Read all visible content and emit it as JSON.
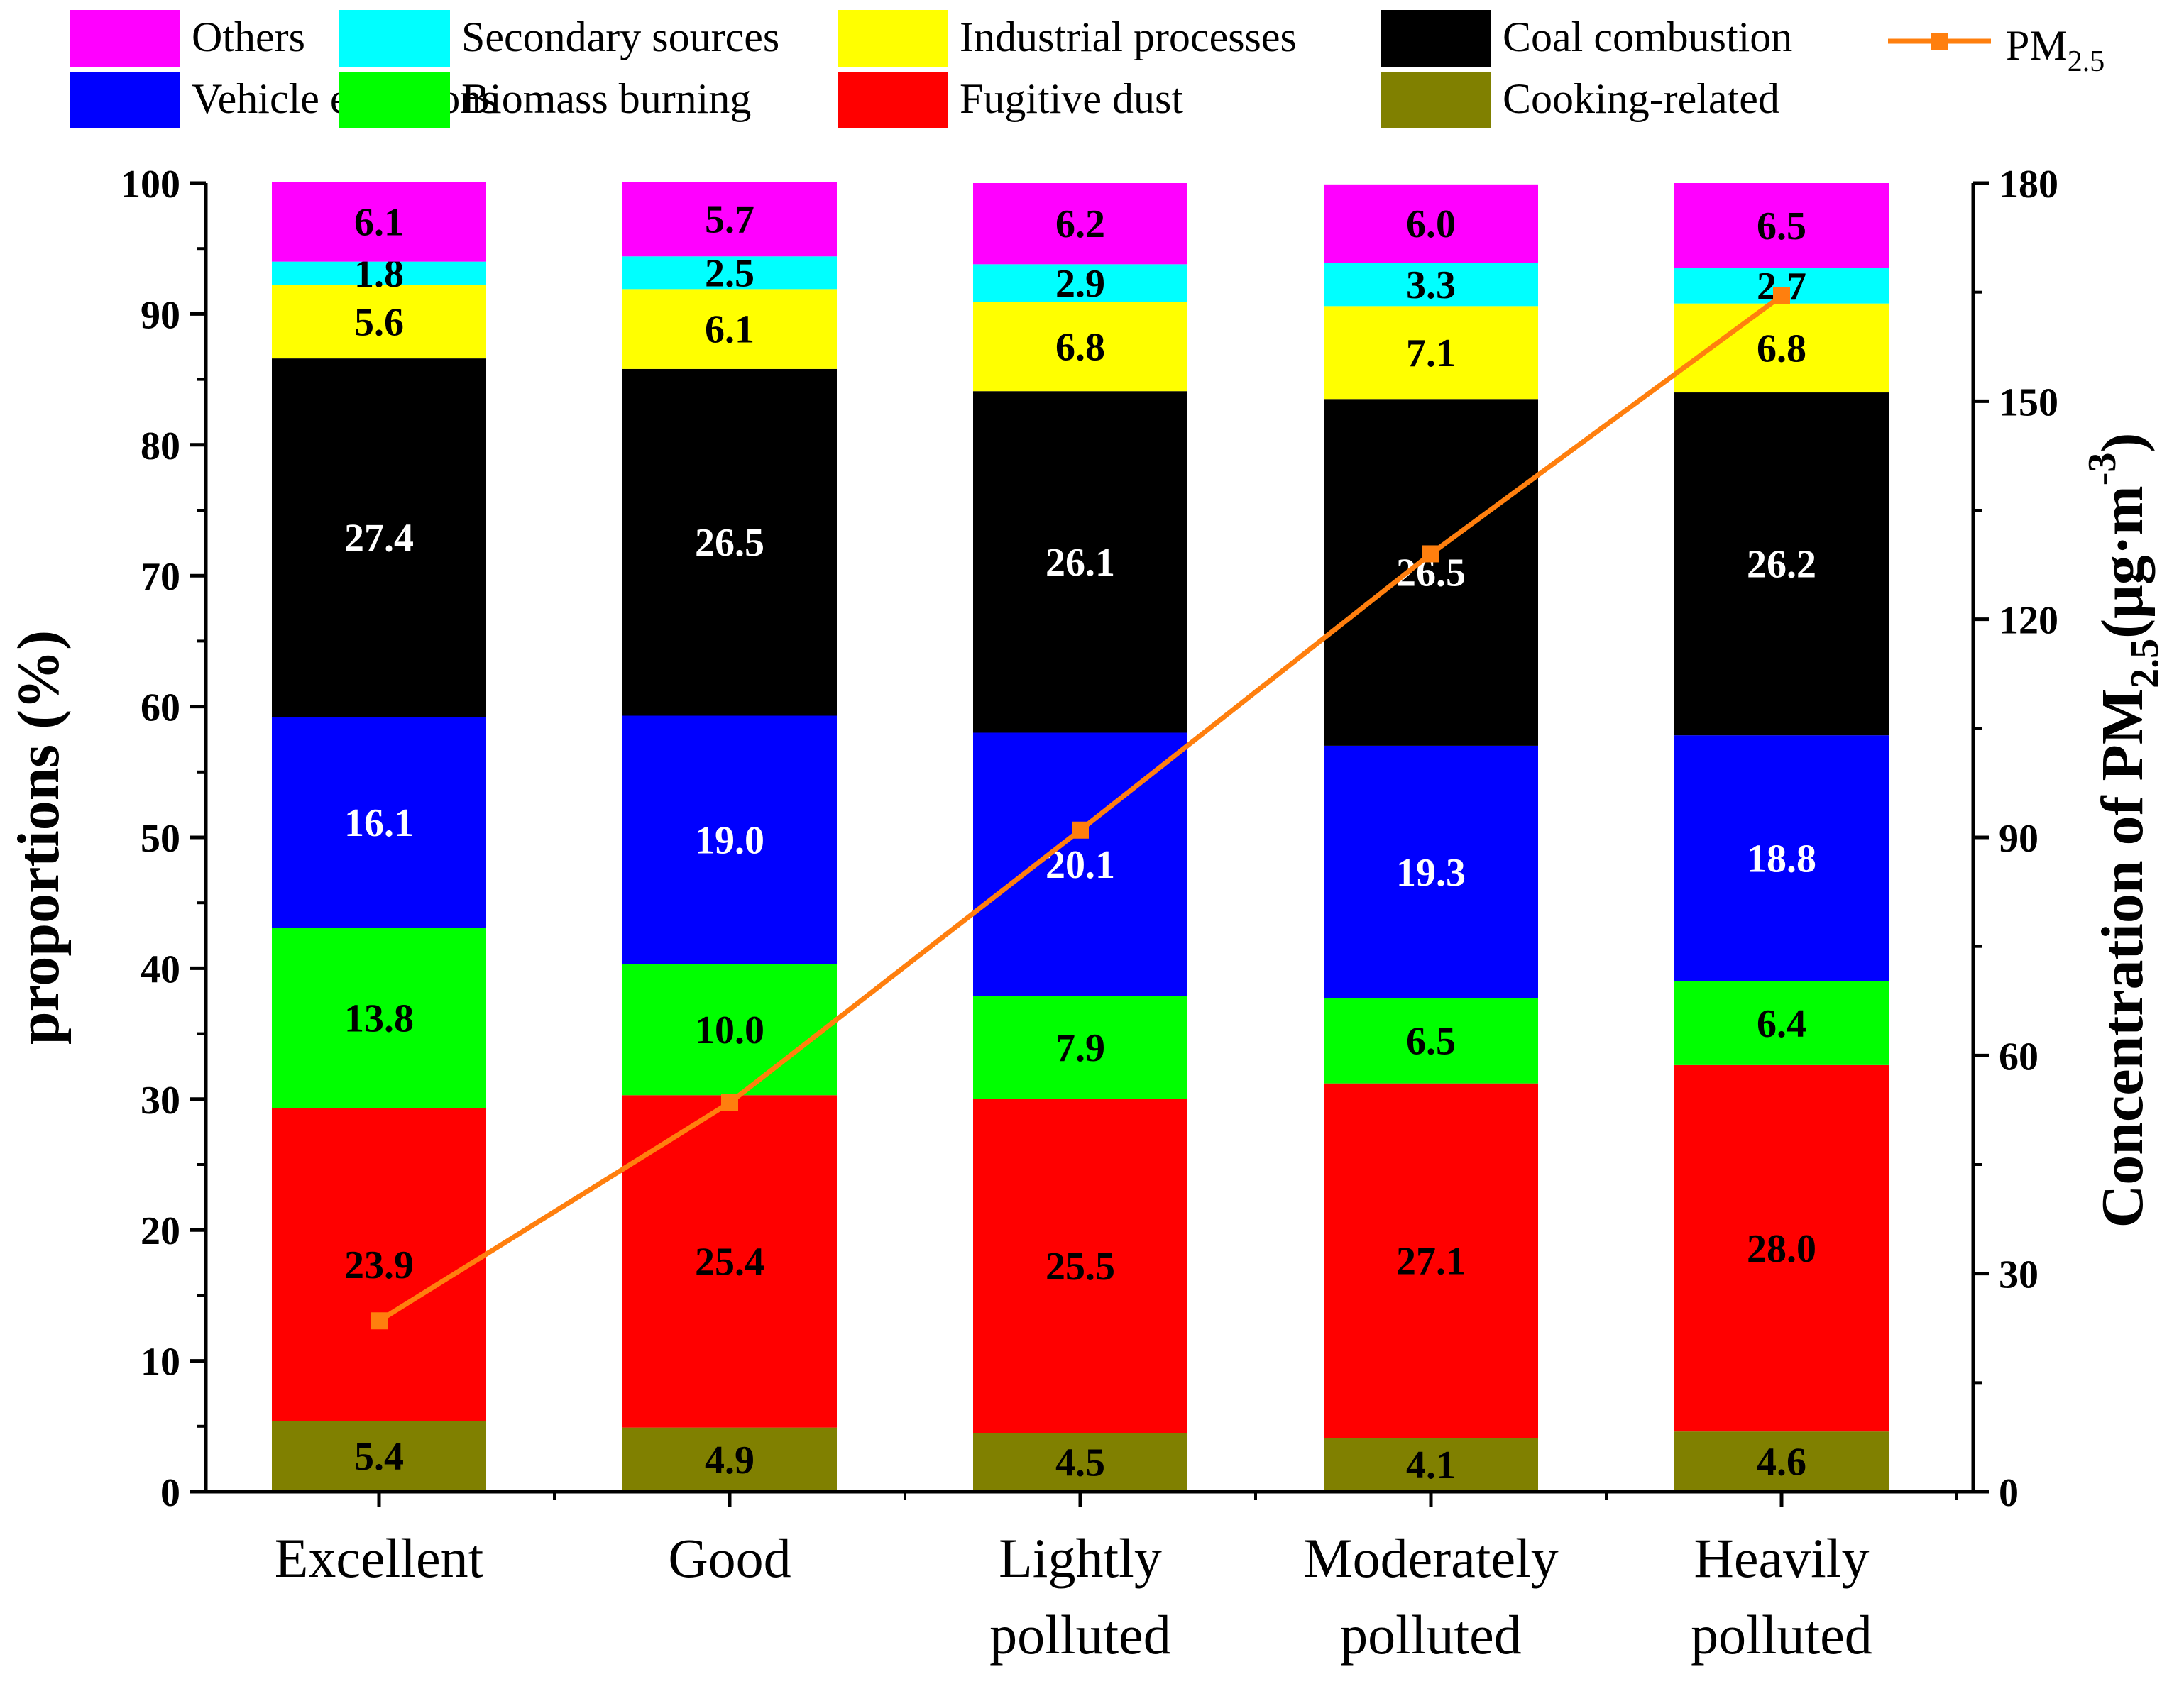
{
  "chart_data": {
    "type": "bar",
    "stacked": true,
    "categories": [
      [
        "Excellent"
      ],
      [
        "Good"
      ],
      [
        "Lightly",
        "polluted"
      ],
      [
        "Moderately",
        "polluted"
      ],
      [
        "Heavily",
        "polluted"
      ]
    ],
    "series": [
      {
        "name": "Cooking-related",
        "color": "#808000",
        "label_color": "#000000",
        "values": [
          5.4,
          4.9,
          4.5,
          4.1,
          4.6
        ]
      },
      {
        "name": "Fugitive dust",
        "color": "#ff0000",
        "label_color": "#000000",
        "values": [
          23.9,
          25.4,
          25.5,
          27.1,
          28.0
        ]
      },
      {
        "name": "Biomass burning",
        "color": "#00ff00",
        "label_color": "#000000",
        "values": [
          13.8,
          10.0,
          7.9,
          6.5,
          6.4
        ]
      },
      {
        "name": "Vehicle emissions",
        "color": "#0000ff",
        "label_color": "#ffffff",
        "values": [
          16.1,
          19.0,
          20.1,
          19.3,
          18.8
        ]
      },
      {
        "name": "Coal combustion",
        "color": "#000000",
        "label_color": "#ffffff",
        "values": [
          27.4,
          26.5,
          26.1,
          26.5,
          26.2
        ]
      },
      {
        "name": "Industrial processes",
        "color": "#ffff00",
        "label_color": "#000000",
        "values": [
          5.6,
          6.1,
          6.8,
          7.1,
          6.8
        ]
      },
      {
        "name": "Secondary sources",
        "color": "#00ffff",
        "label_color": "#000000",
        "values": [
          1.8,
          2.5,
          2.9,
          3.3,
          2.7
        ]
      },
      {
        "name": "Others",
        "color": "#ff00ff",
        "label_color": "#000000",
        "values": [
          6.1,
          5.7,
          6.2,
          6.0,
          6.5
        ]
      }
    ],
    "line_series": {
      "name": "PM",
      "name_sub": "2.5",
      "color": "#ff7f0e",
      "values": [
        23.5,
        53.5,
        91,
        129,
        164.5
      ]
    },
    "y_left": {
      "label": "proportions (%)",
      "ylim": [
        0,
        100
      ],
      "ticks": [
        0,
        10,
        20,
        30,
        40,
        50,
        60,
        70,
        80,
        90,
        100
      ]
    },
    "y_right": {
      "label_parts": [
        {
          "text": "Concentration of PM",
          "shift": "none"
        },
        {
          "text": "2.5",
          "shift": "sub"
        },
        {
          "text": "(μg·m",
          "shift": "none"
        },
        {
          "text": "-3",
          "shift": "super"
        },
        {
          "text": ")",
          "shift": "none"
        }
      ],
      "ylim": [
        0,
        180
      ],
      "ticks": [
        0,
        30,
        60,
        90,
        120,
        150,
        180
      ]
    },
    "legend": {
      "placement": "top",
      "rows": [
        [
          "Others",
          "Secondary sources",
          "Industrial processes",
          "Coal combustion"
        ],
        [
          "Vehicle emissions",
          "Biomass burning",
          "Fugitive dust",
          "Cooking-related"
        ]
      ]
    }
  }
}
